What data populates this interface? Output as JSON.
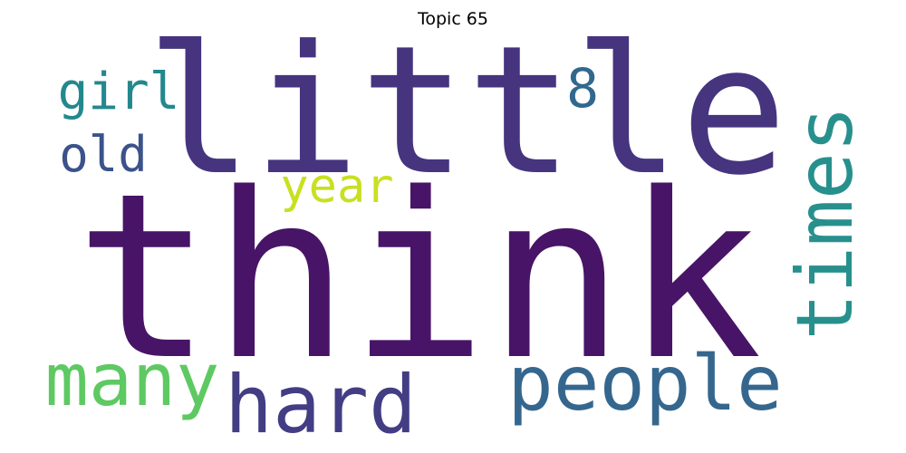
{
  "title": "Topic 65",
  "words": [
    {
      "id": "think",
      "text": "think",
      "color": "#481467"
    },
    {
      "id": "little",
      "text": "little",
      "color": "#46347f"
    },
    {
      "id": "times",
      "text": "times",
      "color": "#27908d"
    },
    {
      "id": "people",
      "text": "people",
      "color": "#35678e"
    },
    {
      "id": "hard",
      "text": "hard",
      "color": "#433d84"
    },
    {
      "id": "many",
      "text": "many",
      "color": "#5ec962"
    },
    {
      "id": "girl",
      "text": "girl",
      "color": "#23888e"
    },
    {
      "id": "old",
      "text": "old",
      "color": "#3b528b"
    },
    {
      "id": "eight",
      "text": "8",
      "color": "#31688e"
    },
    {
      "id": "year",
      "text": "year",
      "color": "#c8e020"
    }
  ]
}
